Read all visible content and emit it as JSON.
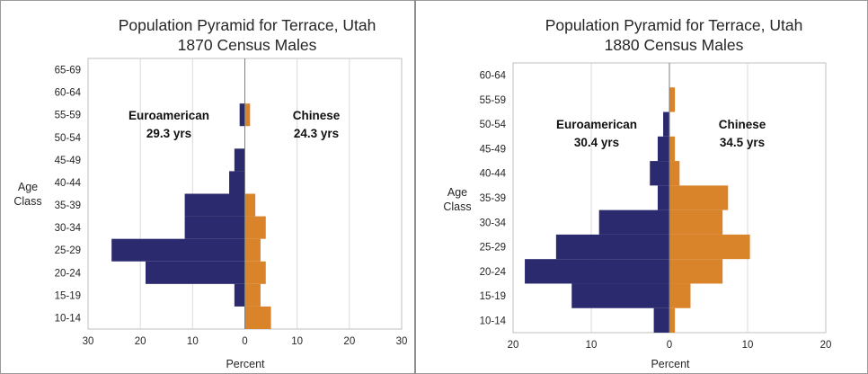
{
  "chart_data": [
    {
      "type": "bar",
      "orientation": "horizontal",
      "layout": "population-pyramid",
      "title": [
        "Population Pyramid for Terrace, Utah",
        "1870 Census Males"
      ],
      "xlabel": "Percent",
      "ylabel": [
        "Age",
        "Class"
      ],
      "categories": [
        "10-14",
        "15-19",
        "20-24",
        "25-29",
        "30-34",
        "35-39",
        "40-44",
        "45-49",
        "50-54",
        "55-59",
        "60-64",
        "65-69"
      ],
      "xlim": [
        -30,
        30
      ],
      "xticks": [
        -30,
        -20,
        -10,
        0,
        10,
        20,
        30
      ],
      "xtick_labels": [
        "30",
        "20",
        "10",
        "0",
        "10",
        "20",
        "30"
      ],
      "grid": "vertical",
      "series": [
        {
          "name": "Euroamerican",
          "side": "left",
          "color": "#2b2a6e",
          "values": [
            0,
            2,
            19,
            25.5,
            11.5,
            11.5,
            3,
            2,
            0,
            1,
            0,
            0
          ]
        },
        {
          "name": "Chinese",
          "side": "right",
          "color": "#d9832a",
          "values": [
            5,
            3,
            4,
            3,
            4,
            2,
            0,
            0,
            0,
            1,
            0,
            0
          ]
        }
      ],
      "annotations": [
        {
          "name": "Euroamerican",
          "text": "29.3 yrs"
        },
        {
          "name": "Chinese",
          "text": "24.3 yrs"
        }
      ]
    },
    {
      "type": "bar",
      "orientation": "horizontal",
      "layout": "population-pyramid",
      "title": [
        "Population Pyramid for Terrace, Utah",
        "1880 Census Males"
      ],
      "xlabel": "Percent",
      "ylabel": [
        "Age",
        "Class"
      ],
      "categories": [
        "10-14",
        "15-19",
        "20-24",
        "25-29",
        "30-34",
        "35-39",
        "40-44",
        "45-49",
        "50-54",
        "55-59",
        "60-64"
      ],
      "xlim": [
        -20,
        20
      ],
      "xticks": [
        -20,
        -10,
        0,
        10,
        20
      ],
      "xtick_labels": [
        "20",
        "10",
        "0",
        "10",
        "20"
      ],
      "grid": "vertical",
      "series": [
        {
          "name": "Euroamerican",
          "side": "left",
          "color": "#2b2a6e",
          "values": [
            2,
            12.5,
            18.5,
            14.5,
            9,
            1.5,
            2.5,
            1.5,
            0.8,
            0,
            0
          ]
        },
        {
          "name": "Chinese",
          "side": "right",
          "color": "#d9832a",
          "values": [
            0.7,
            2.7,
            6.8,
            10.3,
            6.8,
            7.5,
            1.3,
            0.7,
            0,
            0.7,
            0
          ]
        }
      ],
      "annotations": [
        {
          "name": "Euroamerican",
          "text": "30.4 yrs"
        },
        {
          "name": "Chinese",
          "text": "34.5 yrs"
        }
      ]
    }
  ]
}
